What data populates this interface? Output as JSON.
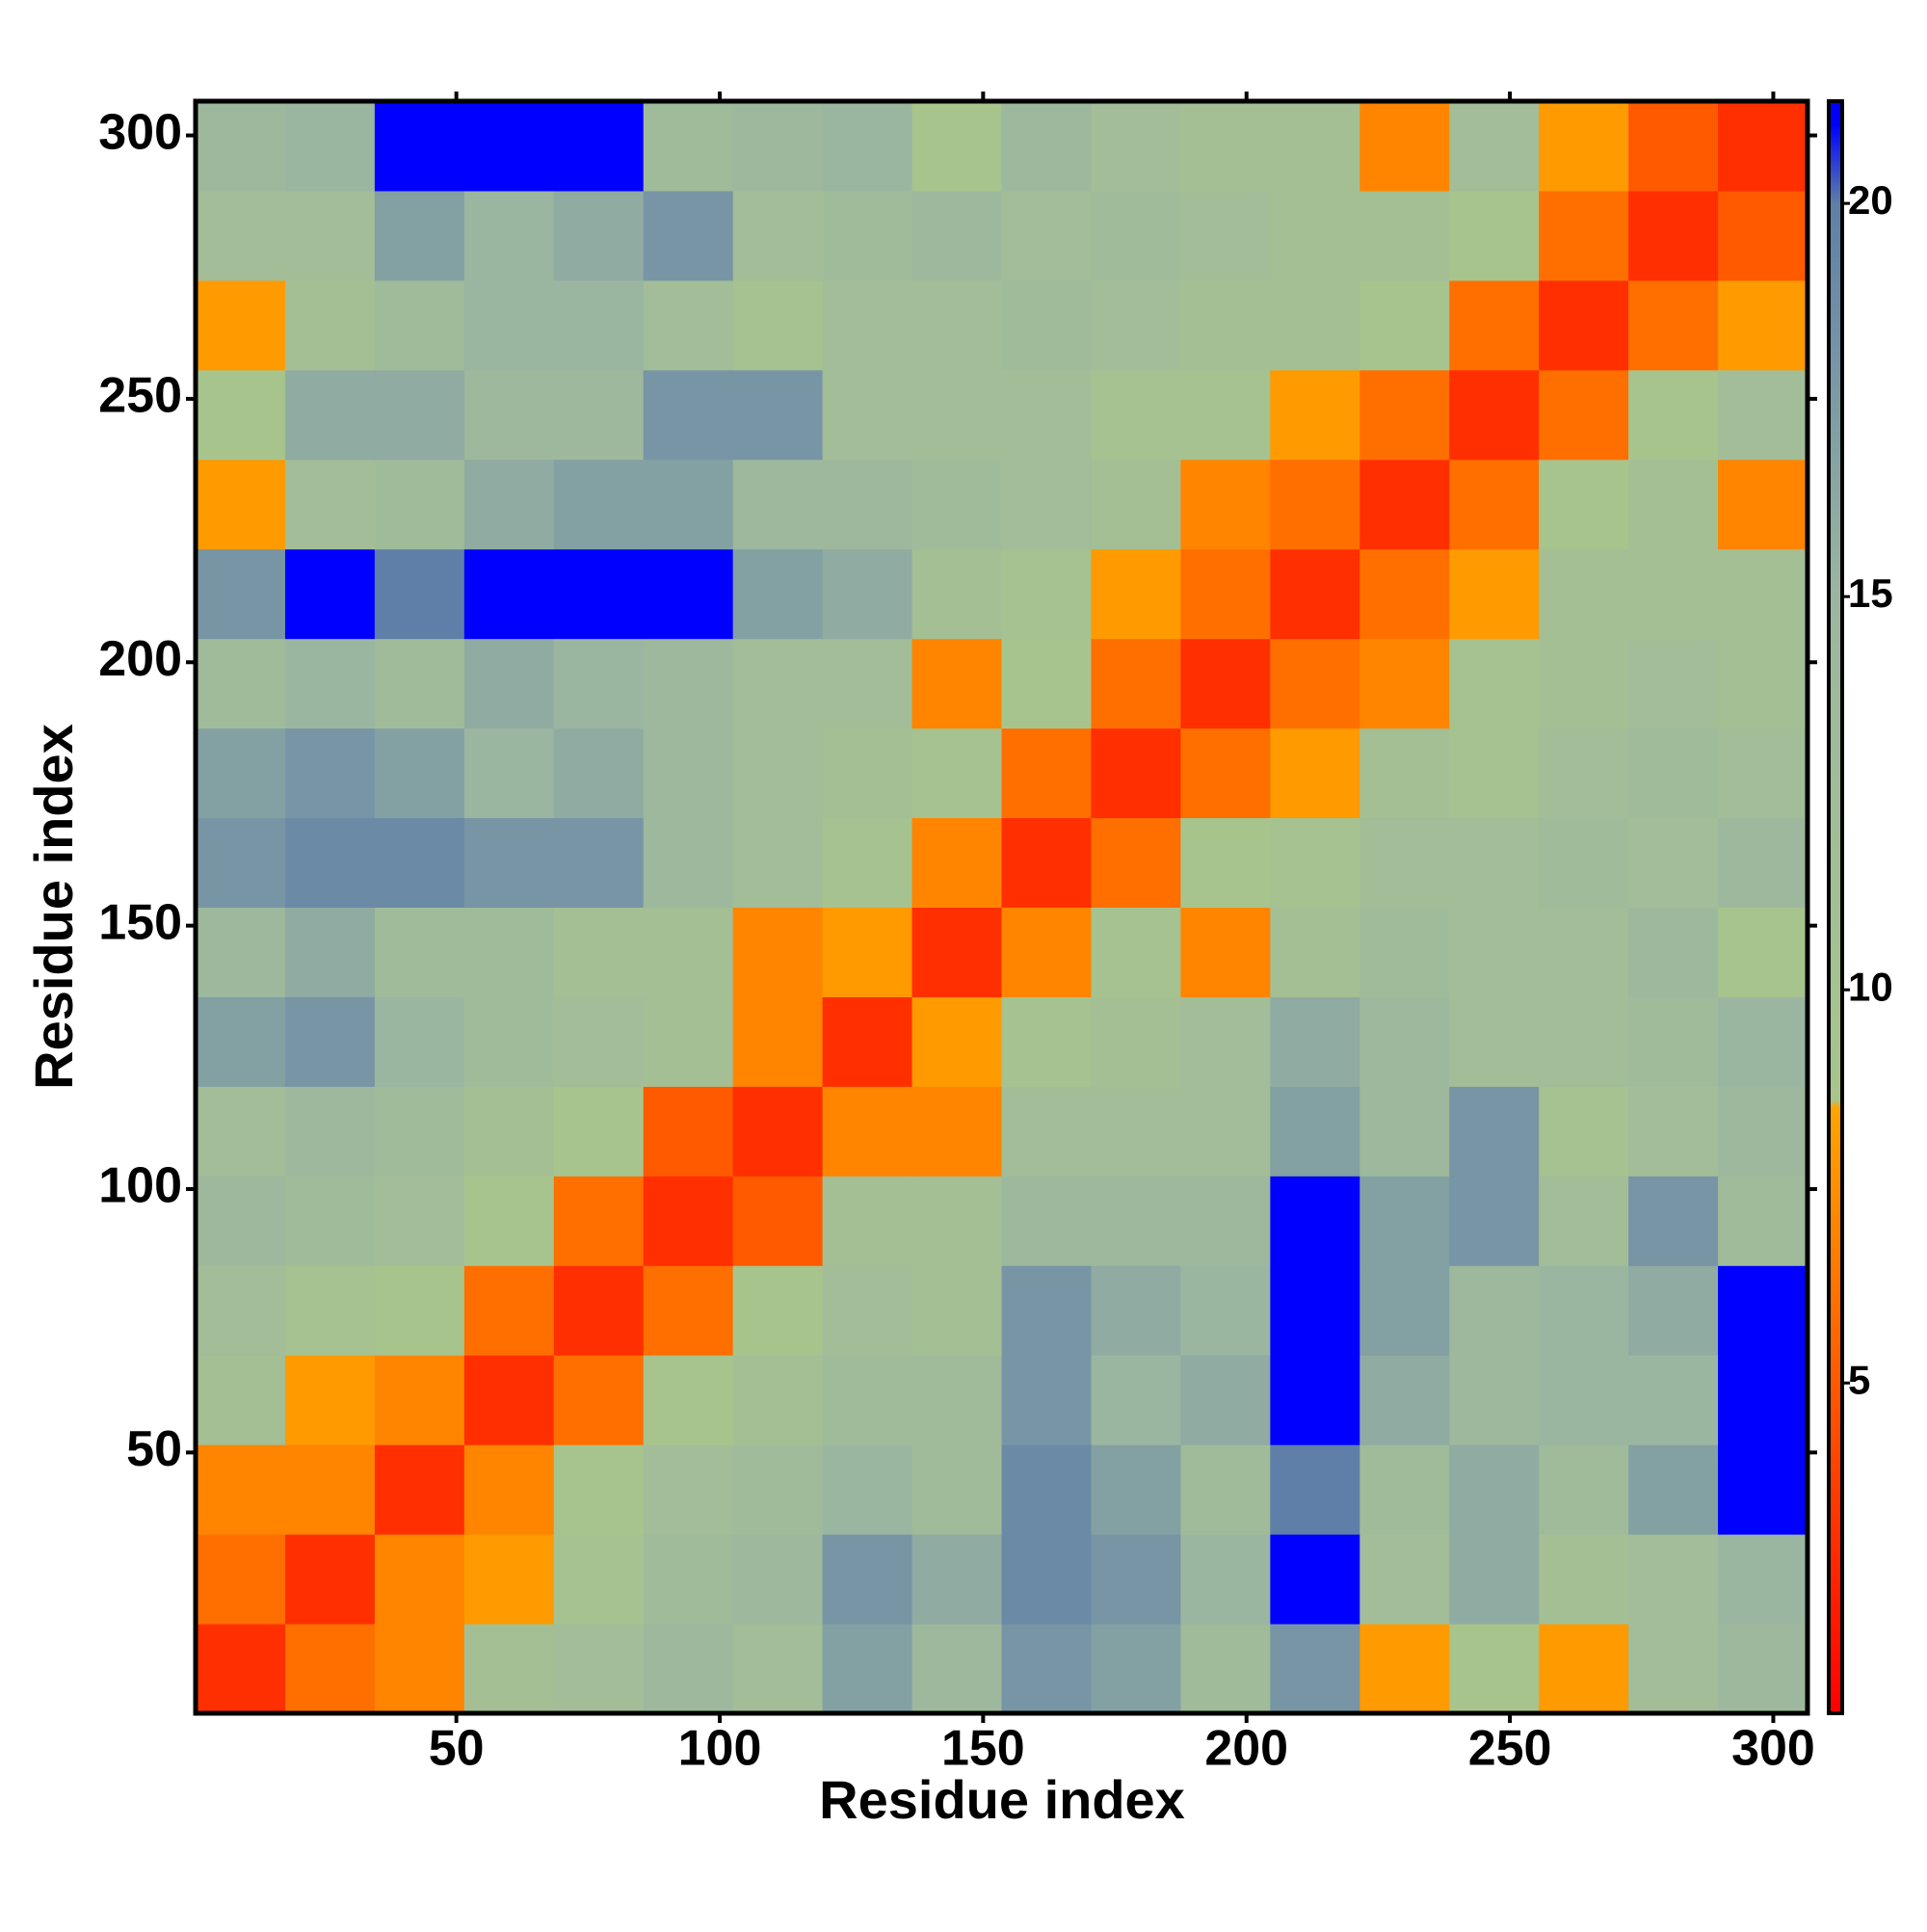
{
  "chart_data": {
    "type": "heatmap",
    "x_label": "Residue index",
    "y_label": "Residue index",
    "xlim": [
      0.5,
      306.5
    ],
    "ylim": [
      0.5,
      306.5
    ],
    "xticks": [
      50,
      100,
      150,
      200,
      250,
      300
    ],
    "yticks": [
      50,
      100,
      150,
      200,
      250,
      300
    ],
    "bins": [
      0.5,
      17.5,
      34.5,
      51.5,
      68.5,
      85.5,
      102.5,
      119.5,
      136.5,
      153.5,
      170.5,
      187.5,
      204.5,
      221.5,
      238.5,
      255.5,
      272.5,
      289.5,
      306.5
    ],
    "values": [
      [
        3,
        6,
        7,
        11,
        12,
        14,
        12,
        17,
        14,
        18,
        17,
        13,
        18,
        8,
        9,
        8,
        12,
        14
      ],
      [
        6,
        3,
        7,
        8,
        10,
        13,
        14,
        18,
        16,
        19,
        18,
        15,
        21,
        12,
        16,
        11,
        12,
        15
      ],
      [
        7,
        7,
        3,
        7,
        9,
        12,
        13,
        15,
        13,
        19,
        17,
        13,
        20,
        13,
        16,
        13,
        17,
        21
      ],
      [
        11,
        8,
        7,
        3,
        6,
        9,
        11,
        13,
        13,
        18,
        15,
        16,
        21,
        16,
        14,
        15,
        15,
        21
      ],
      [
        12,
        10,
        9,
        6,
        3,
        6,
        9,
        12,
        11,
        18,
        16,
        15,
        21,
        17,
        14,
        15,
        16,
        21
      ],
      [
        14,
        13,
        12,
        9,
        6,
        3,
        5,
        11,
        11,
        14,
        14,
        14,
        21,
        17,
        18,
        12,
        18,
        13
      ],
      [
        12,
        14,
        13,
        11,
        9,
        5,
        3,
        7,
        7,
        12,
        12,
        12,
        17,
        14,
        18,
        10,
        12,
        14
      ],
      [
        17,
        18,
        15,
        13,
        12,
        11,
        7,
        3,
        8,
        10,
        11,
        12,
        16,
        14,
        12,
        12,
        13,
        15
      ],
      [
        14,
        16,
        13,
        13,
        11,
        11,
        7,
        8,
        3,
        7,
        10,
        7,
        11,
        13,
        12,
        12,
        14,
        9
      ],
      [
        18,
        19,
        19,
        18,
        18,
        14,
        12,
        10,
        7,
        3,
        6,
        9,
        10,
        12,
        12,
        13,
        12,
        14
      ],
      [
        17,
        18,
        17,
        15,
        16,
        14,
        12,
        11,
        10,
        6,
        3,
        6,
        8,
        11,
        10,
        12,
        13,
        12
      ],
      [
        13,
        15,
        13,
        16,
        15,
        14,
        12,
        12,
        7,
        9,
        6,
        3,
        6,
        7,
        10,
        11,
        12,
        11
      ],
      [
        18,
        21,
        20,
        21,
        21,
        21,
        17,
        16,
        11,
        10,
        8,
        6,
        3,
        6,
        8,
        11,
        11,
        11
      ],
      [
        8,
        12,
        13,
        16,
        17,
        17,
        14,
        14,
        13,
        12,
        11,
        7,
        6,
        3,
        6,
        9,
        11,
        7
      ],
      [
        9,
        16,
        16,
        14,
        14,
        18,
        18,
        12,
        12,
        12,
        10,
        10,
        8,
        6,
        3,
        6,
        9,
        12
      ],
      [
        8,
        11,
        13,
        15,
        15,
        12,
        10,
        12,
        12,
        13,
        12,
        11,
        11,
        9,
        6,
        3,
        6,
        8
      ],
      [
        12,
        12,
        17,
        15,
        16,
        18,
        12,
        13,
        14,
        12,
        13,
        12,
        11,
        11,
        9,
        6,
        3,
        5
      ],
      [
        14,
        15,
        21,
        21,
        21,
        13,
        14,
        15,
        9,
        14,
        12,
        11,
        11,
        7,
        12,
        8,
        5,
        3
      ]
    ],
    "clim": [
      0.8,
      21.3
    ],
    "cticks": [
      5,
      10,
      15,
      20
    ],
    "colorscale": [
      [
        0.8,
        "#ff0000"
      ],
      [
        5,
        "#ff5a00"
      ],
      [
        8.5,
        "#ffa500"
      ],
      [
        8.6,
        "#a9c58c"
      ],
      [
        15,
        "#9bb6a0"
      ],
      [
        20,
        "#5f7fa8"
      ],
      [
        21,
        "#0000ff"
      ]
    ]
  }
}
